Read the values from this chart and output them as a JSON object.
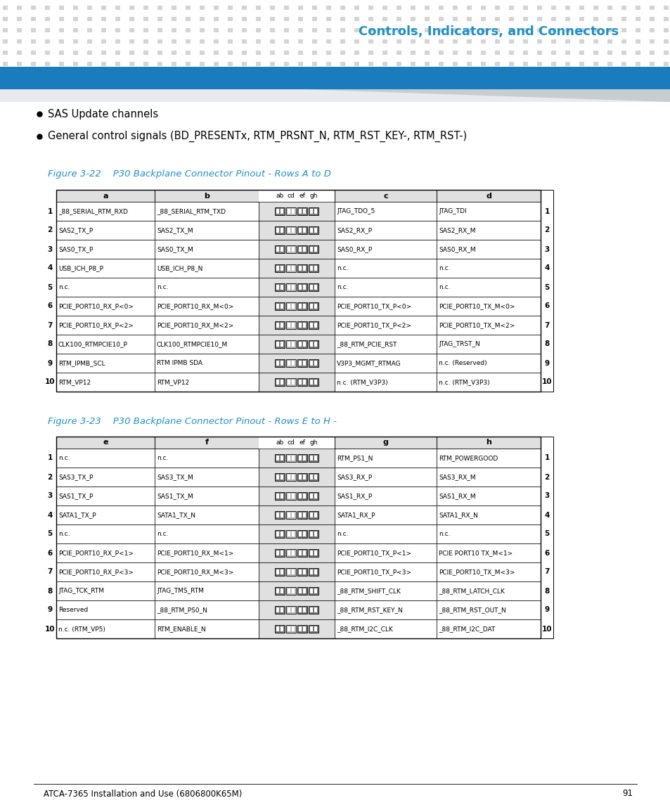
{
  "header_bg": "#e0e0e0",
  "page_bg": "#ffffff",
  "title_color": "#1e90c8",
  "top_bar_color": "#1a7bbf",
  "top_dots_color": "#d4d4d4",
  "bullet_text": [
    "SAS Update channels",
    "General control signals (BD_PRESENTx, RTM_PRSNT_N, RTM_RST_KEY-, RTM_RST-)"
  ],
  "fig22_title": "Figure 3-22    P30 Backplane Connector Pinout - Rows A to D",
  "fig23_title": "Figure 3-23    P30 Backplane Connector Pinout - Rows E to H -",
  "table1_col_a": "a",
  "table1_col_b": "b",
  "table1_col_c": "c",
  "table1_col_d": "d",
  "table2_col_a": "e",
  "table2_col_b": "f",
  "table2_col_c": "g",
  "table2_col_d": "h",
  "table1_rows": [
    [
      "1",
      "_88_SERIAL_RTM_RXD",
      "_88_SERIAL_RTM_TXD",
      "JTAG_TDO_5",
      "JTAG_TDI"
    ],
    [
      "2",
      "SAS2_TX_P",
      "SAS2_TX_M",
      "SAS2_RX_P",
      "SAS2_RX_M"
    ],
    [
      "3",
      "SAS0_TX_P",
      "SAS0_TX_M",
      "SAS0_RX_P",
      "SAS0_RX_M"
    ],
    [
      "4",
      "USB_ICH_P8_P",
      "USB_ICH_P8_N",
      "n.c.",
      "n.c."
    ],
    [
      "5",
      "n.c.",
      "n.c.",
      "n.c.",
      "n.c."
    ],
    [
      "6",
      "PCIE_PORT10_RX_P<0>",
      "PCIE_PORT10_RX_M<0>",
      "PCIE_PORT10_TX_P<0>",
      "PCIE_PORT10_TX_M<0>"
    ],
    [
      "7",
      "PCIE_PORT10_RX_P<2>",
      "PCIE_PORT10_RX_M<2>",
      "PCIE_PORT10_TX_P<2>",
      "PCIE_PORT10_TX_M<2>"
    ],
    [
      "8",
      "CLK100_RTMPCIE10_P",
      "CLK100_RTMPCIE10_M",
      "_88_RTM_PCIE_RST",
      "JTAG_TRST_N"
    ],
    [
      "9",
      "RTM_IPMB_SCL",
      "RTM IPMB SDA",
      "V3P3_MGMT_RTMAG",
      "n.c. (Reserved)"
    ],
    [
      "10",
      "RTM_VP12",
      "RTM_VP12",
      "n.c. (RTM_V3P3)",
      "n.c. (RTM_V3P3)"
    ]
  ],
  "table2_rows": [
    [
      "1",
      "n.c.",
      "n.c.",
      "RTM_PS1_N",
      "RTM_POWERGOOD"
    ],
    [
      "2",
      "SAS3_TX_P",
      "SAS3_TX_M",
      "SAS3_RX_P",
      "SAS3_RX_M"
    ],
    [
      "3",
      "SAS1_TX_P",
      "SAS1_TX_M",
      "SAS1_RX_P",
      "SAS1_RX_M"
    ],
    [
      "4",
      "SATA1_TX_P",
      "SATA1_TX_N",
      "SATA1_RX_P",
      "SATA1_RX_N"
    ],
    [
      "5",
      "n.c.",
      "n.c.",
      "n.c.",
      "n.c."
    ],
    [
      "6",
      "PCIE_PORT10_RX_P<1>",
      "PCIE_PORT10_RX_M<1>",
      "PCIE_PORT10_TX_P<1>",
      "PCIE PORT10 TX_M<1>"
    ],
    [
      "7",
      "PCIE_PORT10_RX_P<3>",
      "PCIE_PORT10_RX_M<3>",
      "PCIE_PORT10_TX_P<3>",
      "PCIE_PORT10_TX_M<3>"
    ],
    [
      "8",
      "JTAG_TCK_RTM",
      "JTAG_TMS_RTM",
      "_88_RTM_SHIFT_CLK",
      "_88_RTM_LATCH_CLK"
    ],
    [
      "9",
      "Reserved",
      "_88_RTM_PS0_N",
      "_88_RTM_RST_KEY_N",
      "_88_RTM_RST_OUT_N"
    ],
    [
      "10",
      "n.c. (RTM_VP5)",
      "RTM_ENABLE_N",
      "_88_RTM_I2C_CLK",
      "_88_RTM_I2C_DAT"
    ]
  ],
  "footer_text": "ATCA-7365 Installation and Use (6806800K65M)",
  "footer_page": "91",
  "conn_dark": "#777777",
  "conn_mid": "#bbbbbb",
  "conn_light": "#dddddd"
}
